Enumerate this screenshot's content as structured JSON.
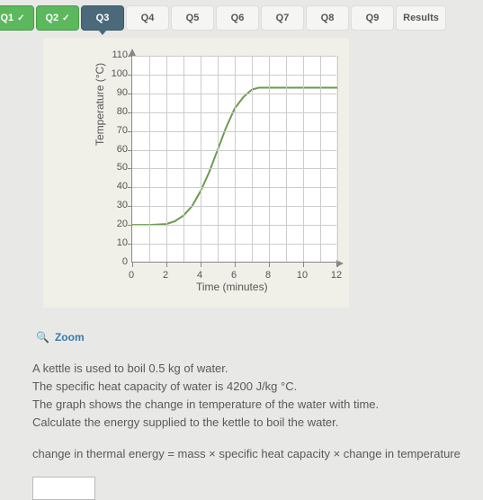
{
  "tabs": [
    {
      "label": "Q1",
      "state": "done",
      "check": true
    },
    {
      "label": "Q2",
      "state": "done",
      "check": true
    },
    {
      "label": "Q3",
      "state": "active",
      "check": false
    },
    {
      "label": "Q4",
      "state": "normal",
      "check": false
    },
    {
      "label": "Q5",
      "state": "normal",
      "check": false
    },
    {
      "label": "Q6",
      "state": "normal",
      "check": false
    },
    {
      "label": "Q7",
      "state": "normal",
      "check": false
    },
    {
      "label": "Q8",
      "state": "normal",
      "check": false
    },
    {
      "label": "Q9",
      "state": "normal",
      "check": false
    },
    {
      "label": "Results",
      "state": "normal",
      "check": false
    }
  ],
  "chart": {
    "type": "line",
    "ylabel": "Temperature (°C)",
    "xlabel": "Time (minutes)",
    "ylim": [
      0,
      110
    ],
    "ytick_step": 10,
    "xlim": [
      0,
      12
    ],
    "xtick_step": 2,
    "yticks": [
      "0",
      "10",
      "20",
      "30",
      "40",
      "50",
      "60",
      "70",
      "80",
      "90",
      "100",
      "110"
    ],
    "xticks": [
      "0",
      "2",
      "4",
      "6",
      "8",
      "10",
      "12"
    ],
    "line_color": "#6b9b4e",
    "line_width": 2,
    "background_color": "#ffffff",
    "panel_color": "#f0efe8",
    "grid_color": "#cccccc",
    "points": [
      [
        0,
        20
      ],
      [
        1,
        20
      ],
      [
        2,
        20.5
      ],
      [
        2.5,
        22
      ],
      [
        3,
        25
      ],
      [
        3.5,
        30
      ],
      [
        4,
        38
      ],
      [
        4.5,
        48
      ],
      [
        5,
        60
      ],
      [
        5.5,
        72
      ],
      [
        6,
        82
      ],
      [
        6.5,
        88
      ],
      [
        7,
        92
      ],
      [
        7.4,
        93
      ],
      [
        8,
        93
      ],
      [
        10,
        93
      ],
      [
        12,
        93
      ]
    ]
  },
  "zoom_label": "Zoom",
  "question": {
    "line1": "A kettle is used to boil 0.5 kg of water.",
    "line2": "The specific heat capacity of water is 4200 J/kg °C.",
    "line3": "The graph shows the change in temperature of the water with time.",
    "line4": "Calculate the energy supplied to the kettle to boil the water."
  },
  "formula": "change in thermal energy = mass × specific heat capacity × change in temperature"
}
